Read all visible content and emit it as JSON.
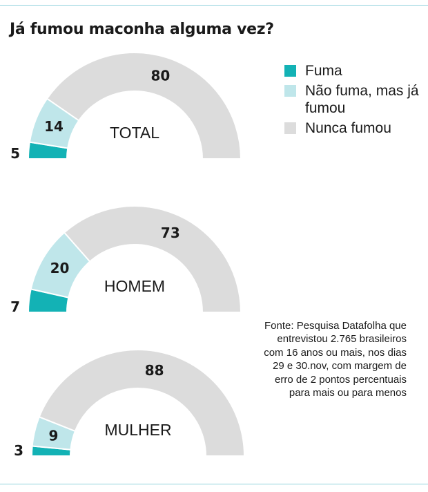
{
  "title": "Já fumou maconha alguma vez?",
  "colors": {
    "fuma": "#13b2b5",
    "nao_fuma_ja_fumou": "#bfe6ea",
    "nunca_fumou": "#dcdcdc",
    "rule": "#8fd1db"
  },
  "legend": [
    {
      "label": "Fuma",
      "color": "#13b2b5"
    },
    {
      "label": "Não fuma, mas já fumou",
      "color": "#bfe6ea"
    },
    {
      "label": "Nunca fumou",
      "color": "#dcdcdc"
    }
  ],
  "source": "Fonte: Pesquisa Datafolha que entrevistou 2.765 brasileiros com 16 anos ou mais, nos dias 29 e 30.nov, com margem de erro de 2 pontos percentuais para mais ou para menos",
  "chart_data": [
    {
      "type": "pie",
      "subtype": "semicircle-donut",
      "label": "TOTAL",
      "categories": [
        "Fuma",
        "Não fuma, mas já fumou",
        "Nunca fumou"
      ],
      "values": [
        5,
        14,
        80
      ],
      "value_labels": [
        "5",
        "14",
        "80"
      ]
    },
    {
      "type": "pie",
      "subtype": "semicircle-donut",
      "label": "HOMEM",
      "categories": [
        "Fuma",
        "Não fuma, mas já fumou",
        "Nunca fumou"
      ],
      "values": [
        7,
        20,
        73
      ],
      "value_labels": [
        "7",
        "20",
        "73"
      ]
    },
    {
      "type": "pie",
      "subtype": "semicircle-donut",
      "label": "MULHER",
      "categories": [
        "Fuma",
        "Não fuma, mas já fumou",
        "Nunca fumou"
      ],
      "values": [
        3,
        9,
        88
      ],
      "value_labels": [
        "3",
        "9",
        "88"
      ]
    }
  ]
}
